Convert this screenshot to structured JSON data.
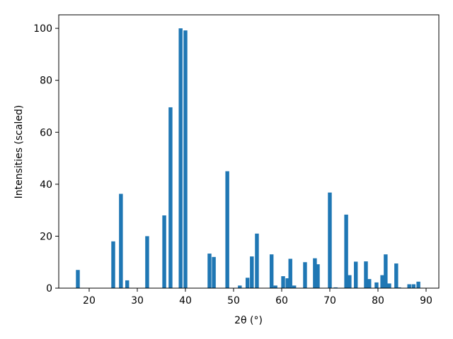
{
  "chart_data": {
    "type": "bar",
    "x_label": "2θ (°)",
    "y_label": "Intensities (scaled)",
    "color": "#1f77b4",
    "x": [
      17.65,
      25.0,
      26.6,
      27.9,
      32.05,
      35.6,
      36.9,
      39.0,
      40.0,
      45.0,
      45.9,
      48.7,
      51.3,
      52.9,
      53.8,
      54.85,
      57.9,
      58.7,
      60.3,
      61.2,
      61.8,
      62.6,
      64.85,
      66.9,
      67.5,
      70.0,
      71.2,
      73.4,
      74.1,
      75.4,
      77.5,
      78.2,
      79.7,
      80.9,
      81.6,
      82.35,
      83.8,
      84.4,
      86.5,
      87.4,
      88.4
    ],
    "values": [
      7,
      18,
      36.3,
      3,
      20,
      28,
      69.6,
      100,
      99.2,
      13.3,
      12,
      45,
      1,
      4,
      12.2,
      21,
      13,
      1,
      4.6,
      3.8,
      11.3,
      1,
      10,
      11.5,
      9.2,
      36.8,
      0.3,
      28.3,
      5,
      10.2,
      10.3,
      3.5,
      2.2,
      5,
      13,
      1.8,
      9.5,
      0.3,
      1.5,
      1.5,
      2.5
    ],
    "xlim": [
      13.68,
      92.65
    ],
    "ylim": [
      0,
      105.2
    ],
    "xticks": [
      20,
      30,
      40,
      50,
      60,
      70,
      80,
      90
    ],
    "yticks": [
      0,
      20,
      40,
      60,
      80,
      100
    ]
  }
}
